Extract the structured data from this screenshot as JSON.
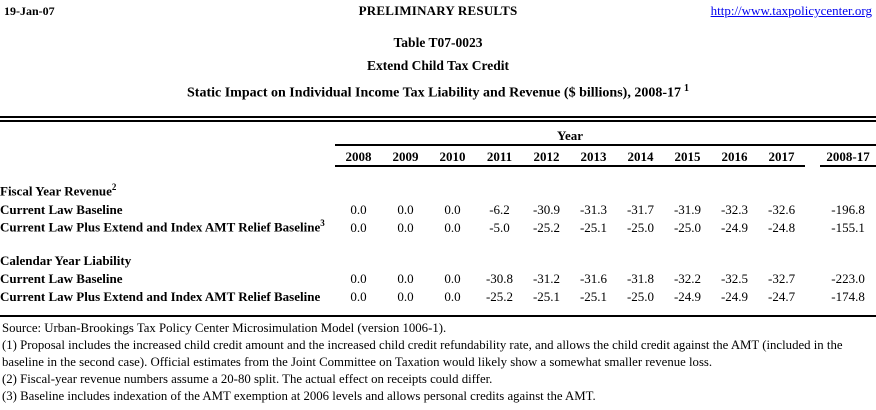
{
  "page_header": {
    "date": "19-Jan-07",
    "center": "PRELIMINARY RESULTS",
    "link": "http://www.taxpolicycenter.org"
  },
  "title": {
    "line1": "Table T07-0023",
    "line2": "Extend Child Tax Credit",
    "line3": "Static Impact on Individual Income Tax Liability and Revenue ($ billions), 2008-17",
    "line3_superscript": "1"
  },
  "table": {
    "year_group_label": "Year",
    "columns": [
      "2008",
      "2009",
      "2010",
      "2011",
      "2012",
      "2013",
      "2014",
      "2015",
      "2016",
      "2017",
      "2008-17"
    ],
    "sections": [
      {
        "label": "Fiscal Year Revenue",
        "superscript": "2",
        "rows": [
          {
            "label": "Current Law Baseline",
            "superscript": "",
            "values": [
              "0.0",
              "0.0",
              "0.0",
              "-6.2",
              "-30.9",
              "-31.3",
              "-31.7",
              "-31.9",
              "-32.3",
              "-32.6",
              "-196.8"
            ]
          },
          {
            "label": "Current Law Plus Extend and Index AMT Relief Baseline",
            "superscript": "3",
            "values": [
              "0.0",
              "0.0",
              "0.0",
              "-5.0",
              "-25.2",
              "-25.1",
              "-25.0",
              "-25.0",
              "-24.9",
              "-24.8",
              "-155.1"
            ]
          }
        ]
      },
      {
        "label": "Calendar Year Liability",
        "superscript": "",
        "rows": [
          {
            "label": "Current Law Baseline",
            "superscript": "",
            "values": [
              "0.0",
              "0.0",
              "0.0",
              "-30.8",
              "-31.2",
              "-31.6",
              "-31.8",
              "-32.2",
              "-32.5",
              "-32.7",
              "-223.0"
            ]
          },
          {
            "label": "Current Law Plus Extend and Index AMT Relief Baseline",
            "superscript": "",
            "values": [
              "0.0",
              "0.0",
              "0.0",
              "-25.2",
              "-25.1",
              "-25.1",
              "-25.0",
              "-24.9",
              "-24.9",
              "-24.7",
              "-174.8"
            ]
          }
        ]
      }
    ]
  },
  "footnotes": [
    "Source: Urban-Brookings Tax Policy Center Microsimulation Model (version 1006-1).",
    "(1) Proposal includes the increased child credit amount and the increased child credit refundability rate, and allows the child credit against the AMT (included in the baseline in the second case). Official estimates from the Joint Committee on Taxation would likely show a somewhat smaller revenue loss.",
    "(2) Fiscal-year revenue numbers assume a 20-80 split. The actual effect on receipts could differ.",
    "(3) Baseline includes indexation of the AMT exemption at 2006 levels and allows personal credits against the AMT."
  ],
  "colors": {
    "background": "#ffffff",
    "text": "#000000",
    "link": "#0000ee",
    "rule": "#000000"
  }
}
